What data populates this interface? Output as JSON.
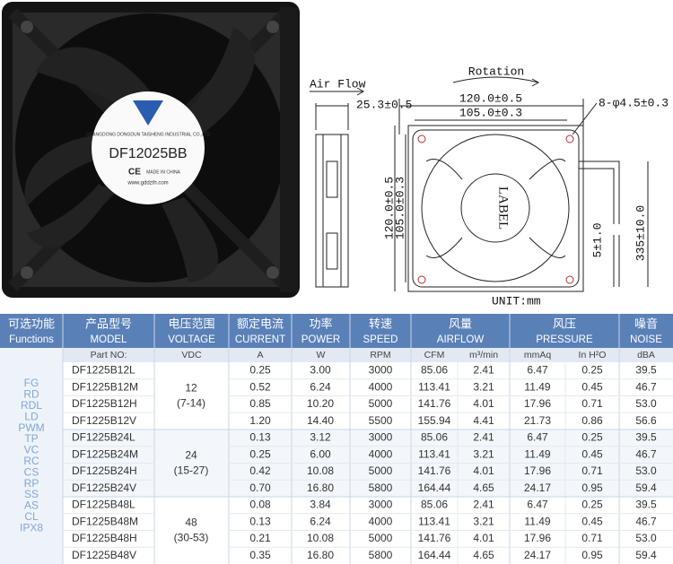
{
  "photo": {
    "brand_text": "GUANGDONG DONGDUN TAISHENG INDUSTRIAL CO.,LTD",
    "model": "DF12025BB",
    "ce": "CE",
    "origin": "MADE IN CHINA",
    "website": "www.gddzth.com"
  },
  "drawing": {
    "air_flow": "Air Flow",
    "depth": "25.3±0.5",
    "rotation": "Rotation",
    "width_outer": "120.0±0.5",
    "width_inner": "105.0±0.3",
    "holes": "8-φ4.5±0.3",
    "height_outer": "120.0±0.5",
    "height_inner": "105.0±0.3",
    "label": "LABEL",
    "wire_strip": "5±1.0",
    "wire_length": "335±10.0",
    "unit": "UNIT:mm"
  },
  "table": {
    "headers": [
      {
        "zh": "可选功能",
        "en": "Functions"
      },
      {
        "zh": "产品型号",
        "en": "MODEL"
      },
      {
        "zh": "电压范围",
        "en": "VOLTAGE"
      },
      {
        "zh": "额定电流",
        "en": "CURRENT"
      },
      {
        "zh": "功率",
        "en": "POWER"
      },
      {
        "zh": "转速",
        "en": "SPEED"
      },
      {
        "zh": "风量",
        "en": "AIRFLOW"
      },
      {
        "zh": "风压",
        "en": "PRESSURE"
      },
      {
        "zh": "噪音",
        "en": "NOISE"
      }
    ],
    "units": [
      "Part NO:",
      "VDC",
      "A",
      "W",
      "RPM",
      "CFM",
      "m³/min",
      "mmAq",
      "In H²O",
      "dBA"
    ],
    "functions": [
      "FG",
      "RD",
      "RDL",
      "LD",
      "PWM",
      "TP",
      "VC",
      "RC",
      "CS",
      "RP",
      "SS",
      "AS",
      "CL",
      "IPX8"
    ],
    "voltage_groups": [
      {
        "voltage": "12",
        "range": "(7-14)"
      },
      {
        "voltage": "24",
        "range": "(15-27)"
      },
      {
        "voltage": "48",
        "range": "(30-53)"
      }
    ],
    "rows": [
      [
        "DF1225B12L",
        "0.25",
        "3.00",
        "3000",
        "85.06",
        "2.41",
        "6.47",
        "0.25",
        "39.5"
      ],
      [
        "DF1225B12M",
        "0.52",
        "6.24",
        "4000",
        "113.41",
        "3.21",
        "11.49",
        "0.45",
        "46.7"
      ],
      [
        "DF1225B12H",
        "0.85",
        "10.20",
        "5000",
        "141.76",
        "4.01",
        "17.96",
        "0.71",
        "53.0"
      ],
      [
        "DF1225B12V",
        "1.20",
        "14.40",
        "5500",
        "155.94",
        "4.41",
        "21.73",
        "0.86",
        "56.6"
      ],
      [
        "DF1225B24L",
        "0.13",
        "3.12",
        "3000",
        "85.06",
        "2.41",
        "6.47",
        "0.25",
        "39.5"
      ],
      [
        "DF1225B24M",
        "0.25",
        "6.00",
        "4000",
        "113.41",
        "3.21",
        "11.49",
        "0.45",
        "46.7"
      ],
      [
        "DF1225B24H",
        "0.42",
        "10.08",
        "5000",
        "141.76",
        "4.01",
        "17.96",
        "0.71",
        "53.0"
      ],
      [
        "DF1225B24V",
        "0.70",
        "16.80",
        "5800",
        "164.44",
        "4.65",
        "24.17",
        "0.95",
        "59.4"
      ],
      [
        "DF1225B48L",
        "0.08",
        "3.84",
        "3000",
        "85.06",
        "2.41",
        "6.47",
        "0.25",
        "39.5"
      ],
      [
        "DF1225B48M",
        "0.13",
        "6.24",
        "4000",
        "113.41",
        "3.21",
        "11.49",
        "0.45",
        "46.7"
      ],
      [
        "DF1225B48H",
        "0.21",
        "10.08",
        "5000",
        "141.76",
        "4.01",
        "17.96",
        "0.71",
        "53.0"
      ],
      [
        "DF1225B48V",
        "0.35",
        "16.80",
        "5800",
        "164.44",
        "4.65",
        "24.17",
        "0.95",
        "59.4"
      ]
    ]
  }
}
